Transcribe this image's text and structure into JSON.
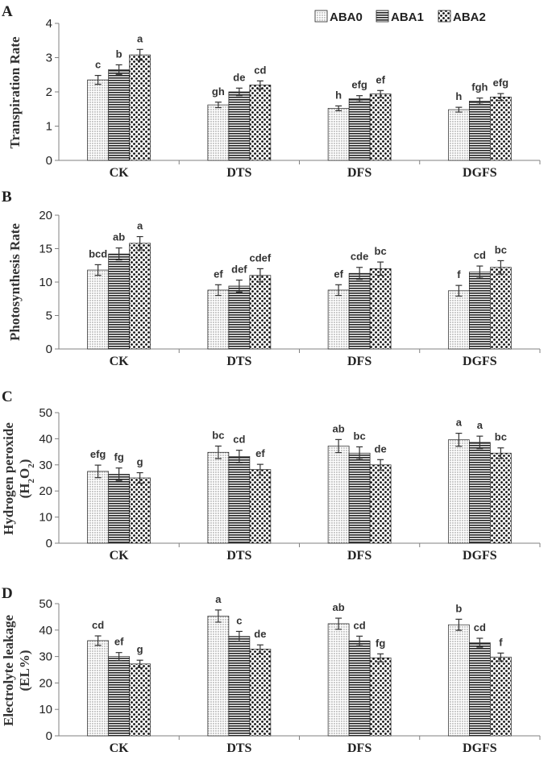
{
  "chart_data": {
    "legend": {
      "series_names": [
        "ABA0",
        "ABA1",
        "ABA2"
      ],
      "placement": "top-right"
    },
    "categories": [
      "CK",
      "DTS",
      "DFS",
      "DGFS"
    ],
    "colors": {
      "ink": "#222222",
      "axis": "#808080",
      "label": "#333333"
    },
    "panels": [
      {
        "type": "bar",
        "letter": "A",
        "ylabel": "Transpiration Rate",
        "ylim": [
          0,
          4
        ],
        "yticks": [
          0,
          1,
          2,
          3,
          4
        ],
        "series": [
          {
            "name": "ABA0",
            "values": [
              2.35,
              1.62,
              1.52,
              1.48
            ],
            "errors": [
              0.13,
              0.08,
              0.07,
              0.07
            ],
            "letters": [
              "c",
              "gh",
              "h",
              "h"
            ]
          },
          {
            "name": "ABA1",
            "values": [
              2.65,
              2.0,
              1.8,
              1.73
            ],
            "errors": [
              0.14,
              0.11,
              0.09,
              0.09
            ],
            "letters": [
              "b",
              "de",
              "efg",
              "fgh"
            ]
          },
          {
            "name": "ABA2",
            "values": [
              3.08,
              2.2,
              1.94,
              1.85
            ],
            "errors": [
              0.16,
              0.12,
              0.1,
              0.1
            ],
            "letters": [
              "a",
              "cd",
              "ef",
              "efg"
            ]
          }
        ]
      },
      {
        "type": "bar",
        "letter": "B",
        "ylabel": "Photosynthesis Rate",
        "ylim": [
          0,
          20
        ],
        "yticks": [
          0,
          5,
          10,
          15,
          20
        ],
        "series": [
          {
            "name": "ABA0",
            "values": [
              11.8,
              8.8,
              8.8,
              8.7
            ],
            "errors": [
              0.8,
              0.8,
              0.8,
              0.8
            ],
            "letters": [
              "bcd",
              "ef",
              "ef",
              "f"
            ]
          },
          {
            "name": "ABA1",
            "values": [
              14.2,
              9.4,
              11.3,
              11.5
            ],
            "errors": [
              0.9,
              0.9,
              0.9,
              0.9
            ],
            "letters": [
              "ab",
              "def",
              "cde",
              "cd"
            ]
          },
          {
            "name": "ABA2",
            "values": [
              15.8,
              11.0,
              12.0,
              12.2
            ],
            "errors": [
              1.0,
              1.0,
              1.0,
              1.0
            ],
            "letters": [
              "a",
              "cdef",
              "bc",
              "bc"
            ]
          }
        ]
      },
      {
        "type": "bar",
        "letter": "C",
        "ylabel": "Hydrogen peroxide",
        "ylabel2_main": "(H",
        "ylabel2_sub1": "2",
        "ylabel2_mid": "O",
        "ylabel2_sub2": "2",
        "ylabel2_end": ")",
        "ylim": [
          0,
          50
        ],
        "yticks": [
          0,
          10,
          20,
          30,
          40,
          50
        ],
        "series": [
          {
            "name": "ABA0",
            "values": [
              27.5,
              34.8,
              37.2,
              39.6
            ],
            "errors": [
              2.4,
              2.4,
              2.5,
              2.5
            ],
            "letters": [
              "efg",
              "bc",
              "ab",
              "a"
            ]
          },
          {
            "name": "ABA1",
            "values": [
              26.4,
              33.2,
              34.5,
              38.6
            ],
            "errors": [
              2.4,
              2.4,
              2.4,
              2.4
            ],
            "letters": [
              "fg",
              "cd",
              "bc",
              "a"
            ]
          },
          {
            "name": "ABA2",
            "values": [
              25.0,
              28.2,
              30.0,
              34.5
            ],
            "errors": [
              2.0,
              2.0,
              2.0,
              2.0
            ],
            "letters": [
              "g",
              "ef",
              "de",
              "bc"
            ]
          }
        ]
      },
      {
        "type": "bar",
        "letter": "D",
        "ylabel": "Electrolyte leakage",
        "ylabel2": "(EL%)",
        "ylim": [
          0,
          50
        ],
        "yticks": [
          0,
          10,
          20,
          30,
          40,
          50
        ],
        "series": [
          {
            "name": "ABA0",
            "values": [
              36.0,
              45.3,
              42.4,
              42.0
            ],
            "errors": [
              1.8,
              2.3,
              2.1,
              2.1
            ],
            "letters": [
              "cd",
              "a",
              "ab",
              "b"
            ]
          },
          {
            "name": "ABA1",
            "values": [
              30.0,
              37.6,
              35.9,
              35.2
            ],
            "errors": [
              1.5,
              1.9,
              1.8,
              1.7
            ],
            "letters": [
              "ef",
              "c",
              "cd",
              "cd"
            ]
          },
          {
            "name": "ABA2",
            "values": [
              27.2,
              32.8,
              29.5,
              29.8
            ],
            "errors": [
              1.4,
              1.6,
              1.5,
              1.5
            ],
            "letters": [
              "g",
              "de",
              "fg",
              "f"
            ]
          }
        ]
      }
    ]
  }
}
